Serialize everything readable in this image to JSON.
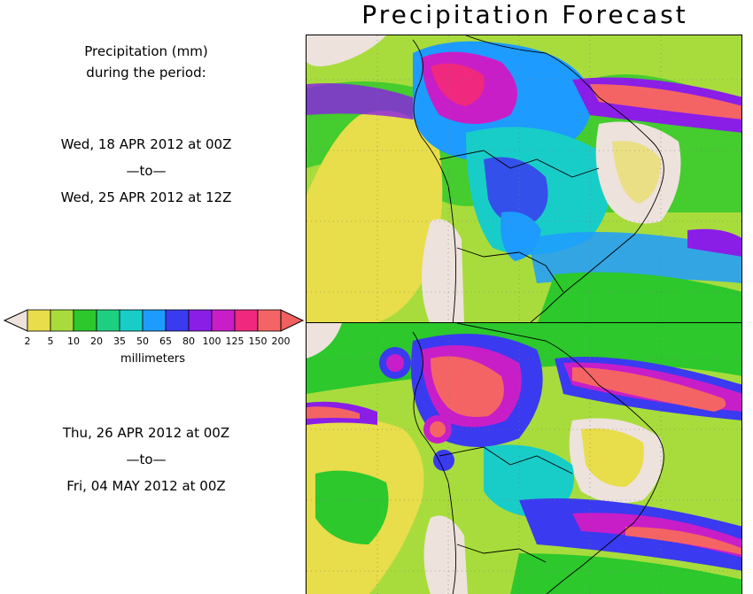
{
  "title": "Precipitation Forecast",
  "header": {
    "line1": "Precipitation (mm)",
    "line2": "during the period:"
  },
  "period1": {
    "start": "Wed, 18 APR 2012 at 00Z",
    "sep": "—to—",
    "end": "Wed, 25 APR 2012 at 12Z"
  },
  "period2": {
    "start": "Thu, 26 APR 2012 at 00Z",
    "sep": "—to—",
    "end": "Fri, 04 MAY 2012 at 00Z"
  },
  "colorbar": {
    "labels": [
      "2",
      "5",
      "10",
      "20",
      "35",
      "50",
      "65",
      "80",
      "100",
      "125",
      "150",
      "200"
    ],
    "units": "millimeters",
    "colors": [
      "#e8dd4a",
      "#a8dc3c",
      "#2cc82c",
      "#1ecf82",
      "#18cdc8",
      "#1e9bff",
      "#3a3af0",
      "#8a1ee6",
      "#c81ec8",
      "#f0287e",
      "#f56464"
    ],
    "low_color": "#ede2dc",
    "high_color": "#f06060"
  }
}
